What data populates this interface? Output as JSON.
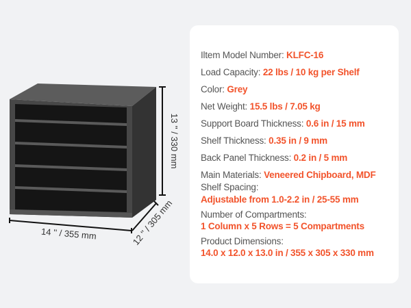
{
  "colors": {
    "accent": "#f2532b",
    "label": "#555555",
    "cabinet": "#3a3a3a",
    "background": "#f1f2f4",
    "panel": "#ffffff"
  },
  "dimensions": {
    "width": "14 '' / 355 mm",
    "height": "13 '' / 330 mm",
    "depth": "12 '' / 305 mm"
  },
  "specs": [
    {
      "label": "Iltem Model Number: ",
      "value": "KLFC-16"
    },
    {
      "label": "Load Capacity: ",
      "value": "22 lbs / 10 kg per Shelf"
    },
    {
      "label": "Color: ",
      "value": "Grey"
    },
    {
      "label": "Net Weight: ",
      "value": "15.5 lbs / 7.05 kg"
    },
    {
      "label": "Support Board Thickness: ",
      "value": "0.6 in / 15 mm"
    },
    {
      "label": "Shelf Thickness: ",
      "value": "0.35 in / 9 mm"
    },
    {
      "label": "Back Panel Thickness: ",
      "value": "0.2 in / 5 mm"
    },
    {
      "label": "Main Materials: ",
      "value": "Veneered Chipboard, MDF"
    }
  ],
  "specs_stacked": [
    {
      "label": "Shelf Spacing:",
      "value": "Adjustable from 1.0-2.2 in / 25-55 mm"
    },
    {
      "label": "Number of Compartments:",
      "value": "1 Column x 5 Rows = 5 Compartments"
    },
    {
      "label": "Product Dimensions:",
      "value": "14.0 x 12.0 x 13.0 in / 355 x 305 x 330 mm"
    }
  ]
}
